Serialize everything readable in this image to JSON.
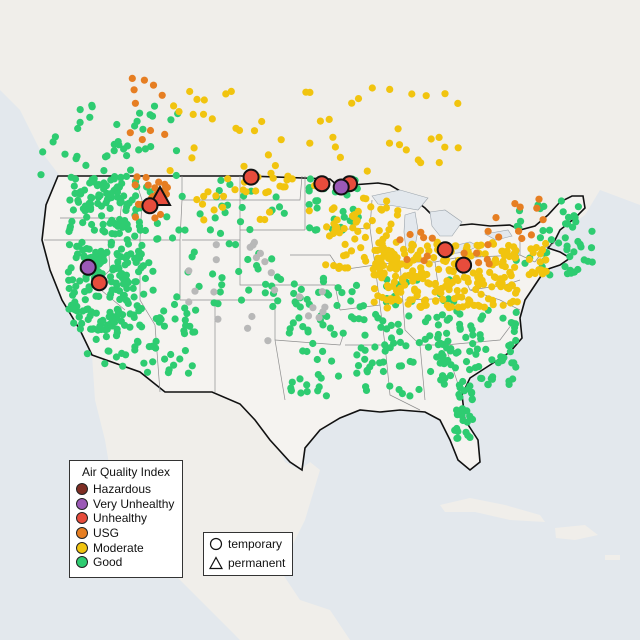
{
  "legend": {
    "title": "Air Quality Index",
    "categories": [
      {
        "label": "Hazardous",
        "color": "#7e2e24"
      },
      {
        "label": "Very Unhealthy",
        "color": "#9b59b6"
      },
      {
        "label": "Unhealthy",
        "color": "#e74c3c"
      },
      {
        "label": "USG",
        "color": "#e67e22"
      },
      {
        "label": "Moderate",
        "color": "#f1c40f"
      },
      {
        "label": "Good",
        "color": "#2ecc71"
      }
    ],
    "no_data_color": "#b8b8b8"
  },
  "type_legend": {
    "temporary": "temporary",
    "permanent": "permanent"
  },
  "map": {
    "land_color": "#f3f1ee",
    "water_color": "#e6eaee",
    "border_color": "#111111",
    "state_line_color": "#8e8e8e",
    "large_markers": [
      {
        "shape": "circle",
        "aqi": "Unhealthy",
        "lon": -104.1,
        "lat": 48.9
      },
      {
        "shape": "circle",
        "aqi": "Unhealthy",
        "lon": -96.4,
        "lat": 48.3
      },
      {
        "shape": "circle",
        "aqi": "Unhealthy",
        "lon": -93.4,
        "lat": 48.3
      },
      {
        "shape": "circle",
        "aqi": "Very Unhealthy",
        "lon": -94.3,
        "lat": 48.0
      },
      {
        "shape": "triangle",
        "aqi": "Unhealthy",
        "lon": -114.0,
        "lat": 47.0
      },
      {
        "shape": "circle",
        "aqi": "Unhealthy",
        "lon": -115.1,
        "lat": 46.3
      },
      {
        "shape": "circle",
        "aqi": "Very Unhealthy",
        "lon": -121.8,
        "lat": 40.7
      },
      {
        "shape": "circle",
        "aqi": "Unhealthy",
        "lon": -120.6,
        "lat": 39.3
      },
      {
        "shape": "circle",
        "aqi": "Unhealthy",
        "lon": -83.0,
        "lat": 42.3
      },
      {
        "shape": "circle",
        "aqi": "Unhealthy",
        "lon": -81.0,
        "lat": 40.9
      }
    ],
    "small_marker_clusters": [
      {
        "aqi": "Good",
        "lon_range": [
          -124,
          -116
        ],
        "lat_range": [
          35,
          49
        ],
        "count": 260
      },
      {
        "aqi": "Good",
        "lon_range": [
          -122,
          -110
        ],
        "lat_range": [
          31,
          37
        ],
        "count": 60
      },
      {
        "aqi": "Good",
        "lon_range": [
          -116,
          -100
        ],
        "lat_range": [
          37,
          49
        ],
        "count": 70
      },
      {
        "aqi": "Good",
        "lon_range": [
          -100,
          -82
        ],
        "lat_range": [
          29,
          40
        ],
        "count": 140
      },
      {
        "aqi": "Good",
        "lon_range": [
          -84,
          -75
        ],
        "lat_range": [
          30,
          37
        ],
        "count": 70
      },
      {
        "aqi": "Good",
        "lon_range": [
          -98,
          -92
        ],
        "lat_range": [
          44,
          49
        ],
        "count": 30
      },
      {
        "aqi": "Good",
        "lon_range": [
          -82,
          -80
        ],
        "lat_range": [
          25,
          30
        ],
        "count": 30
      },
      {
        "aqi": "Good",
        "lon_range": [
          -76,
          -67
        ],
        "lat_range": [
          40,
          47
        ],
        "count": 50
      },
      {
        "aqi": "Good",
        "lon_range": [
          -127,
          -112
        ],
        "lat_range": [
          49,
          56
        ],
        "count": 40
      },
      {
        "aqi": "Moderate",
        "lon_range": [
          -91,
          -75
        ],
        "lat_range": [
          37,
          43
        ],
        "count": 230
      },
      {
        "aqi": "Moderate",
        "lon_range": [
          -96,
          -88
        ],
        "lat_range": [
          40,
          47
        ],
        "count": 60
      },
      {
        "aqi": "Moderate",
        "lon_range": [
          -110,
          -97
        ],
        "lat_range": [
          45,
          49
        ],
        "count": 30
      },
      {
        "aqi": "Moderate",
        "lon_range": [
          -113,
          -80
        ],
        "lat_range": [
          49,
          57
        ],
        "count": 50
      },
      {
        "aqi": "Moderate",
        "lon_range": [
          -74,
          -72
        ],
        "lat_range": [
          40,
          43
        ],
        "count": 20
      },
      {
        "aqi": "USG",
        "lon_range": [
          -117,
          -113
        ],
        "lat_range": [
          45,
          49
        ],
        "count": 20
      },
      {
        "aqi": "USG",
        "lon_range": [
          -88,
          -78
        ],
        "lat_range": [
          41,
          44
        ],
        "count": 15
      },
      {
        "aqi": "USG",
        "lon_range": [
          -78,
          -72
        ],
        "lat_range": [
          43,
          47
        ],
        "count": 10
      },
      {
        "aqi": "USG",
        "lon_range": [
          -118,
          -112
        ],
        "lat_range": [
          50,
          58
        ],
        "count": 10
      },
      {
        "aqi": "No data",
        "lon_range": [
          -112,
          -96
        ],
        "lat_range": [
          34,
          43
        ],
        "count": 25
      }
    ]
  }
}
